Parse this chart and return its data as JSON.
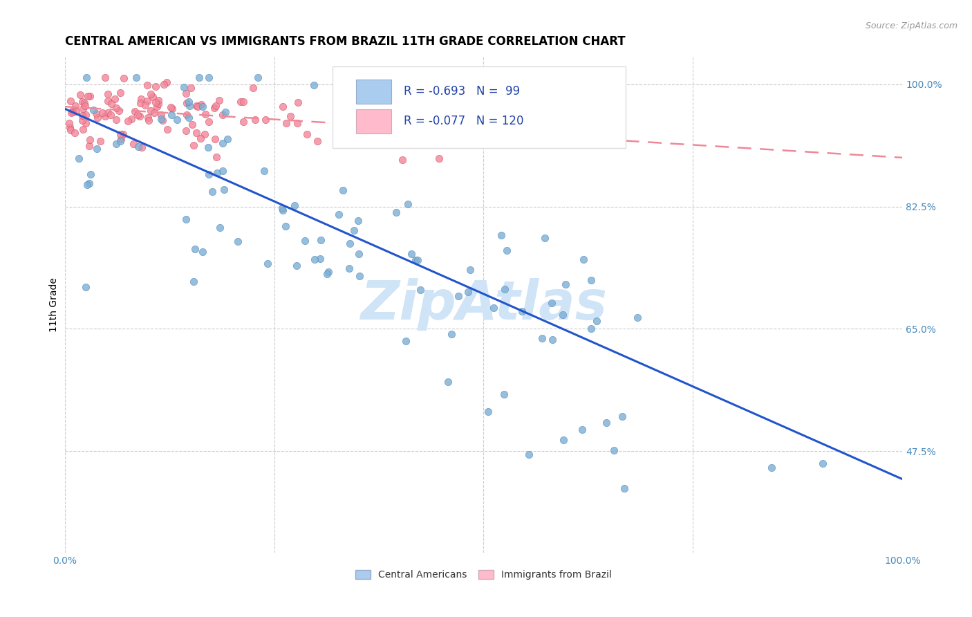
{
  "title": "CENTRAL AMERICAN VS IMMIGRANTS FROM BRAZIL 11TH GRADE CORRELATION CHART",
  "source_text": "Source: ZipAtlas.com",
  "ylabel": "11th Grade",
  "xlim": [
    0.0,
    1.0
  ],
  "ylim": [
    0.33,
    1.04
  ],
  "x_tick_positions": [
    0.0,
    0.25,
    0.5,
    0.75,
    1.0
  ],
  "x_tick_labels": [
    "0.0%",
    "",
    "",
    "",
    "100.0%"
  ],
  "y_tick_positions": [
    0.475,
    0.65,
    0.825,
    1.0
  ],
  "y_tick_labels": [
    "47.5%",
    "65.0%",
    "82.5%",
    "100.0%"
  ],
  "r_blue": -0.693,
  "n_blue": 99,
  "r_pink": -0.077,
  "n_pink": 120,
  "blue_scatter_color": "#7BAFD4",
  "blue_scatter_edge": "#5588BB",
  "pink_scatter_color": "#F4869A",
  "pink_scatter_edge": "#CC5566",
  "blue_line_color": "#2255CC",
  "pink_line_color": "#EE8899",
  "legend_blue_fill": "#AACCEE",
  "legend_pink_fill": "#FFBBCC",
  "watermark_color": "#D0E4F7",
  "title_fontsize": 12,
  "tick_fontsize": 10,
  "tick_color": "#4488BB",
  "blue_trendline_x": [
    0.0,
    1.0
  ],
  "blue_trendline_y": [
    0.965,
    0.435
  ],
  "pink_trendline_x": [
    0.0,
    1.0
  ],
  "pink_trendline_y": [
    0.968,
    0.895
  ]
}
